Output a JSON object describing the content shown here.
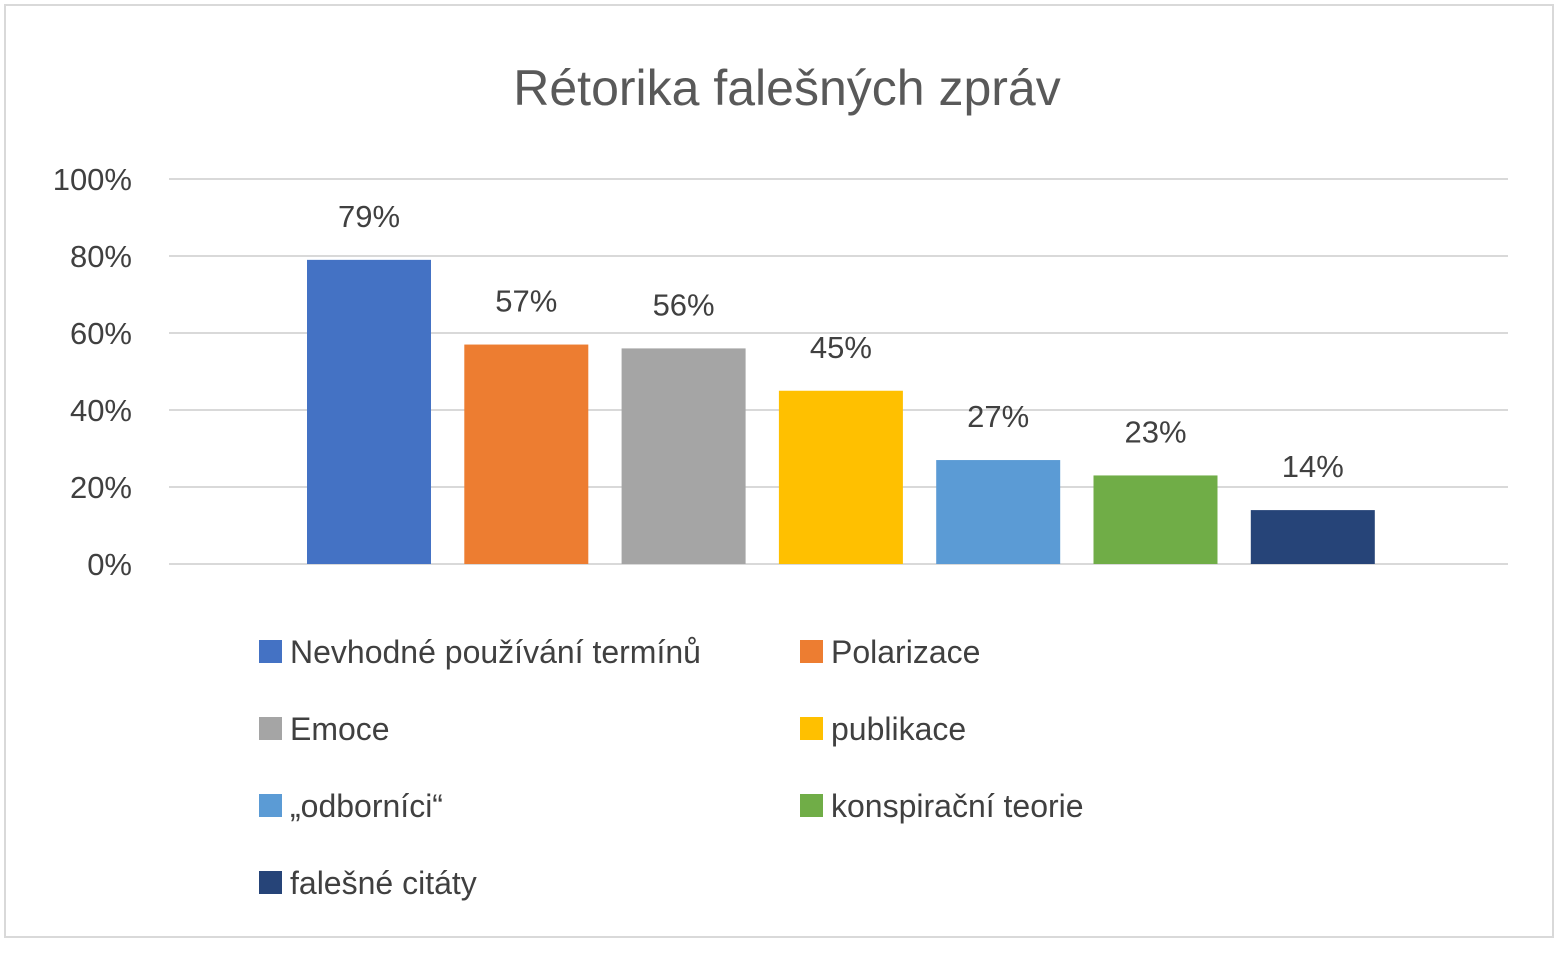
{
  "chart_data": {
    "type": "bar",
    "title": "Rétorika falešných zpráv",
    "ylim": [
      0,
      100
    ],
    "yticks": [
      "0%",
      "20%",
      "40%",
      "60%",
      "80%",
      "100%"
    ],
    "grid": true,
    "legend_position": "bottom",
    "series": [
      {
        "name": "Nevhodné používání termínů",
        "value": 79,
        "label": "79%",
        "color": "#4472C4"
      },
      {
        "name": "Polarizace",
        "value": 57,
        "label": "57%",
        "color": "#ED7D31"
      },
      {
        "name": "Emoce",
        "value": 56,
        "label": "56%",
        "color": "#A5A5A5"
      },
      {
        "name": "publikace",
        "value": 45,
        "label": "45%",
        "color": "#FFC000"
      },
      {
        "name": "„odborníci“",
        "value": 27,
        "label": "27%",
        "color": "#5B9BD5"
      },
      {
        "name": "konspirační teorie",
        "value": 23,
        "label": "23%",
        "color": "#70AD47"
      },
      {
        "name": "falešné citáty",
        "value": 14,
        "label": "14%",
        "color": "#264478"
      }
    ]
  }
}
